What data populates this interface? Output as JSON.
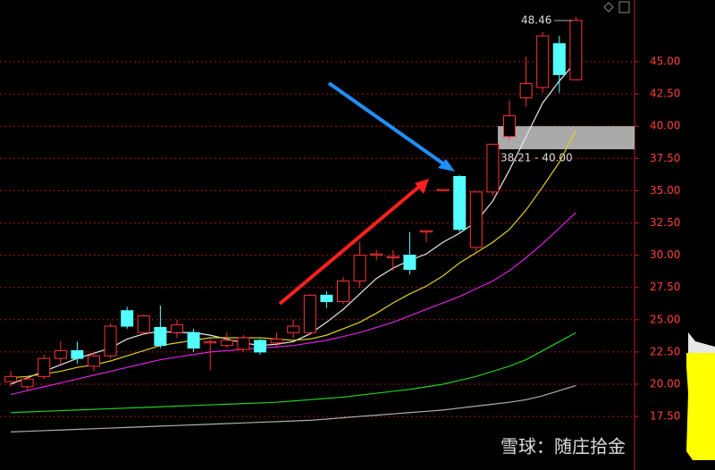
{
  "chart_data": {
    "type": "candlestick",
    "x": [
      null,
      null,
      null,
      null,
      null,
      null,
      null,
      null,
      null,
      null,
      null,
      null,
      null,
      null,
      null,
      null,
      null,
      null,
      null,
      null,
      null,
      null,
      null,
      null,
      null,
      null,
      null,
      null,
      null,
      null,
      null,
      null,
      null,
      null,
      null
    ],
    "open": [
      20.2,
      19.8,
      20.6,
      22.0,
      22.6,
      21.4,
      22.2,
      25.7,
      24.0,
      24.4,
      24.0,
      24.0,
      23.2,
      23.0,
      22.7,
      23.4,
      23.2,
      24.0,
      24.0,
      26.9,
      26.4,
      28.0,
      30.0,
      29.8,
      30.0,
      31.8,
      35.0,
      36.1,
      30.6,
      34.9,
      39.2,
      42.2,
      43.0,
      46.4,
      43.6
    ],
    "high": [
      21.0,
      20.6,
      22.3,
      23.3,
      23.3,
      22.5,
      24.7,
      26.0,
      25.4,
      26.1,
      25.0,
      24.3,
      23.5,
      24.0,
      23.8,
      23.5,
      24.0,
      25.0,
      27.0,
      27.2,
      28.3,
      31.0,
      30.4,
      30.4,
      31.8,
      31.9,
      35.1,
      36.2,
      34.9,
      38.6,
      42.0,
      45.4,
      47.3,
      47.0,
      48.46
    ],
    "low": [
      19.8,
      19.5,
      20.4,
      21.5,
      21.6,
      21.0,
      22.0,
      24.3,
      23.8,
      22.8,
      23.6,
      22.5,
      21.1,
      22.8,
      22.5,
      22.3,
      22.9,
      23.6,
      23.8,
      25.9,
      26.2,
      27.5,
      29.6,
      28.8,
      28.5,
      31.0,
      35.0,
      31.8,
      30.3,
      34.6,
      38.9,
      41.5,
      42.6,
      42.6,
      43.6
    ],
    "close": [
      20.6,
      20.4,
      22.0,
      22.6,
      22.0,
      22.2,
      24.5,
      24.5,
      25.3,
      23.0,
      24.6,
      22.8,
      23.3,
      23.4,
      23.6,
      22.5,
      23.5,
      24.5,
      26.9,
      26.4,
      28.0,
      30.0,
      30.1,
      29.9,
      28.9,
      31.9,
      35.1,
      32.0,
      34.9,
      38.6,
      40.8,
      43.3,
      47.0,
      44.0,
      48.2
    ],
    "up_color": "#ff3232",
    "down_color": "#54ffff",
    "ma_lines": [
      {
        "color": "#e8e8e8",
        "values": [
          20.0,
          20.5,
          21.0,
          21.5,
          22.0,
          22.4,
          22.8,
          23.5,
          23.9,
          24.1,
          24.0,
          24.0,
          23.8,
          23.5,
          23.2,
          23.0,
          23.1,
          23.3,
          23.9,
          24.8,
          25.8,
          27.0,
          28.2,
          29.0,
          29.6,
          30.1,
          31.0,
          31.7,
          32.6,
          34.2,
          36.6,
          39.2,
          41.8,
          43.5,
          45.0
        ]
      },
      {
        "color": "#e0d020",
        "values": [
          20.5,
          20.6,
          20.8,
          21.0,
          21.3,
          21.5,
          21.8,
          22.2,
          22.6,
          23.0,
          23.2,
          23.4,
          23.6,
          23.6,
          23.6,
          23.6,
          23.5,
          23.4,
          23.5,
          23.8,
          24.3,
          24.8,
          25.5,
          26.3,
          27.0,
          27.6,
          28.4,
          29.4,
          30.2,
          31.0,
          32.0,
          33.5,
          35.3,
          37.2,
          39.7
        ]
      },
      {
        "color": "#e020e0",
        "values": [
          19.2,
          19.5,
          19.8,
          20.1,
          20.4,
          20.7,
          21.0,
          21.3,
          21.6,
          21.9,
          22.1,
          22.3,
          22.5,
          22.6,
          22.7,
          22.8,
          22.9,
          23.0,
          23.2,
          23.4,
          23.7,
          24.0,
          24.4,
          24.8,
          25.3,
          25.8,
          26.3,
          26.8,
          27.4,
          28.0,
          28.8,
          29.8,
          30.9,
          32.1,
          33.3
        ]
      },
      {
        "color": "#20d020",
        "values": [
          17.8,
          17.85,
          17.9,
          17.95,
          18.0,
          18.05,
          18.1,
          18.15,
          18.2,
          18.25,
          18.3,
          18.35,
          18.4,
          18.45,
          18.5,
          18.55,
          18.6,
          18.7,
          18.8,
          18.9,
          19.0,
          19.15,
          19.3,
          19.45,
          19.6,
          19.8,
          20.0,
          20.3,
          20.6,
          21.0,
          21.4,
          21.9,
          22.6,
          23.3,
          24.0
        ]
      },
      {
        "color": "#b0b0b0",
        "values": [
          16.3,
          16.35,
          16.4,
          16.45,
          16.5,
          16.55,
          16.6,
          16.65,
          16.7,
          16.75,
          16.8,
          16.85,
          16.9,
          16.95,
          17.0,
          17.05,
          17.1,
          17.15,
          17.2,
          17.3,
          17.4,
          17.5,
          17.6,
          17.7,
          17.8,
          17.9,
          18.0,
          18.15,
          18.3,
          18.45,
          18.6,
          18.8,
          19.1,
          19.5,
          19.9
        ]
      }
    ],
    "ylim": [
      13.35,
      49.78
    ],
    "yticks": [
      {
        "value": 17.5,
        "label": "17.50"
      },
      {
        "value": 20,
        "label": "20.00"
      },
      {
        "value": 22.5,
        "label": "22.50"
      },
      {
        "value": 25,
        "label": "25.00"
      },
      {
        "value": 27.5,
        "label": "27.50"
      },
      {
        "value": 30,
        "label": "30.00"
      },
      {
        "value": 32.5,
        "label": "32.50"
      },
      {
        "value": 35,
        "label": "35.00"
      },
      {
        "value": 37.5,
        "label": "37.50"
      },
      {
        "value": 40,
        "label": "40.00"
      },
      {
        "value": 42.5,
        "label": "42.50"
      },
      {
        "value": 45,
        "label": "45.00"
      }
    ],
    "grid": true,
    "grid_color": "#a01818",
    "high_annotation": 48.46,
    "zone": {
      "low": 38.21,
      "high": 40.0,
      "label": "38.21 - 40.00",
      "color": "#aaaaaa"
    },
    "watermark": "雪球：随庄拾金"
  }
}
